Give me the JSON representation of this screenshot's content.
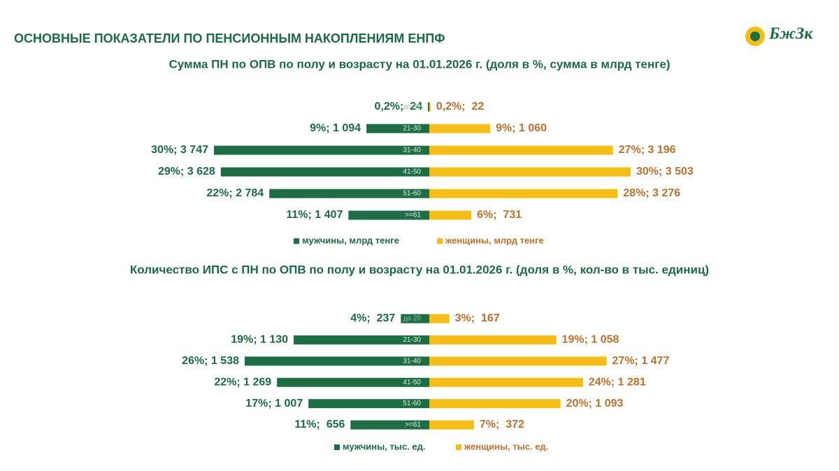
{
  "header": {
    "title": "ОСНОВНЫЕ ПОКАЗАТЕЛИ ПО ПЕНСИОННЫМ НАКОПЛЕНИЯМ ЕНПФ",
    "logo": "БжЗк"
  },
  "chart_data": [
    {
      "type": "butterfly",
      "title": "Сумма ПН по ОПВ по полу и возрасту на 01.01.2026 г. (доля в %, сумма в млрд тенге)",
      "categories": [
        "до 20",
        "21-30",
        "31-40",
        "41-50",
        "51-60",
        ">=61"
      ],
      "series": [
        {
          "name": "мужчины, млрд тенге",
          "color": "#1e6e45",
          "values": [
            24,
            1094,
            3747,
            3628,
            2784,
            1407
          ],
          "value_labels": [
            "0,2%;  24",
            "9%; 1 094",
            "30%; 3 747",
            "29%; 3 628",
            "22%; 2 784",
            "11%; 1 407"
          ]
        },
        {
          "name": "женщины, млрд тенге",
          "color": "#f5be16",
          "values": [
            22,
            1060,
            3196,
            3503,
            3276,
            731
          ],
          "value_labels": [
            "0,2%;  22",
            "9%; 1 060",
            "27%; 3 196",
            "30%; 3 503",
            "28%; 3 276",
            "6%;  731"
          ]
        }
      ]
    },
    {
      "type": "butterfly",
      "title": "Количество ИПС с ПН по ОПВ по полу и возрасту на 01.01.2026 г. (доля в %, кол-во в тыс. единиц)",
      "categories": [
        "до 20",
        "21-30",
        "31-40",
        "41-50",
        "51-60",
        ">=61"
      ],
      "series": [
        {
          "name": "мужчины, тыс. ед.",
          "color": "#1e6e45",
          "values": [
            237,
            1130,
            1538,
            1269,
            1007,
            656
          ],
          "value_labels": [
            "4%;  237",
            "19%; 1 130",
            "26%; 1 538",
            "22%; 1 269",
            "17%; 1 007",
            "11%;  656"
          ]
        },
        {
          "name": "женщины, тыс. ед.",
          "color": "#f5be16",
          "values": [
            167,
            1058,
            1477,
            1281,
            1093,
            372
          ],
          "value_labels": [
            "3%;  167",
            "19%; 1 058",
            "27%; 1 477",
            "24%; 1 281",
            "20%; 1 093",
            "7%;  372"
          ]
        }
      ]
    }
  ]
}
